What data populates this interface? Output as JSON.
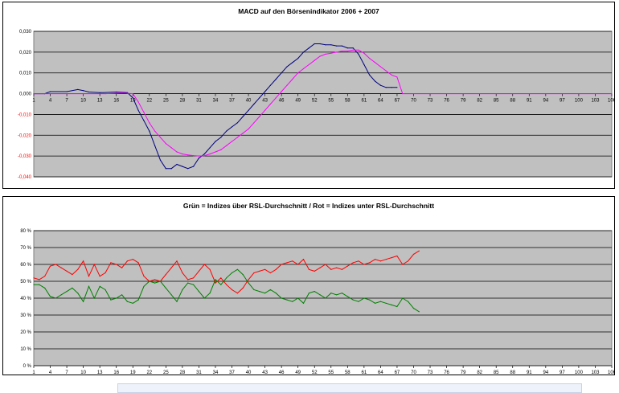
{
  "chart_data": [
    {
      "type": "line",
      "title": "MACD auf den Börsenindikator 2006 + 2007",
      "x_tick_labels": [
        "1",
        "4",
        "7",
        "10",
        "13",
        "16",
        "19",
        "22",
        "25",
        "28",
        "31",
        "34",
        "37",
        "40",
        "43",
        "46",
        "49",
        "52",
        "55",
        "58",
        "61",
        "64",
        "67",
        "70",
        "73",
        "76",
        "79",
        "82",
        "85",
        "88",
        "91",
        "94",
        "97",
        "100",
        "103",
        "106"
      ],
      "y_tick_labels": [
        "0,030",
        "0,020",
        "0,010",
        "0,000",
        "-0,010",
        "-0,020",
        "-0,030",
        "-0,040"
      ],
      "y_tick_values": [
        0.03,
        0.02,
        0.01,
        0.0,
        -0.01,
        -0.02,
        -0.03,
        -0.04
      ],
      "ylim": [
        -0.04,
        0.03
      ],
      "xlim": [
        1,
        106
      ],
      "plot_background": "#c0c0c0",
      "series": [
        {
          "color": "#000080",
          "points": [
            [
              1,
              0
            ],
            [
              3,
              0
            ],
            [
              4,
              0.001
            ],
            [
              7,
              0.001
            ],
            [
              9,
              0.002
            ],
            [
              10,
              0.0015
            ],
            [
              11,
              0.0008
            ],
            [
              13,
              0.0005
            ],
            [
              16,
              0.0008
            ],
            [
              18,
              0.0005
            ],
            [
              19,
              -0.002
            ],
            [
              20,
              -0.008
            ],
            [
              21,
              -0.013
            ],
            [
              22,
              -0.018
            ],
            [
              23,
              -0.025
            ],
            [
              24,
              -0.032
            ],
            [
              25,
              -0.036
            ],
            [
              26,
              -0.036
            ],
            [
              27,
              -0.034
            ],
            [
              28,
              -0.035
            ],
            [
              29,
              -0.036
            ],
            [
              30,
              -0.035
            ],
            [
              31,
              -0.031
            ],
            [
              32,
              -0.029
            ],
            [
              33,
              -0.026
            ],
            [
              34,
              -0.023
            ],
            [
              35,
              -0.021
            ],
            [
              36,
              -0.018
            ],
            [
              37,
              -0.016
            ],
            [
              38,
              -0.014
            ],
            [
              39,
              -0.011
            ],
            [
              40,
              -0.008
            ],
            [
              41,
              -0.005
            ],
            [
              42,
              -0.002
            ],
            [
              43,
              0.001
            ],
            [
              44,
              0.004
            ],
            [
              45,
              0.007
            ],
            [
              46,
              0.01
            ],
            [
              47,
              0.013
            ],
            [
              48,
              0.015
            ],
            [
              49,
              0.017
            ],
            [
              50,
              0.02
            ],
            [
              51,
              0.022
            ],
            [
              52,
              0.024
            ],
            [
              53,
              0.024
            ],
            [
              54,
              0.0235
            ],
            [
              55,
              0.0235
            ],
            [
              56,
              0.023
            ],
            [
              57,
              0.023
            ],
            [
              58,
              0.022
            ],
            [
              59,
              0.022
            ],
            [
              60,
              0.019
            ],
            [
              61,
              0.014
            ],
            [
              62,
              0.009
            ],
            [
              63,
              0.006
            ],
            [
              64,
              0.004
            ],
            [
              65,
              0.003
            ],
            [
              66,
              0.003
            ],
            [
              67,
              0.003
            ]
          ]
        },
        {
          "color": "#ff00ff",
          "points": [
            [
              1,
              0
            ],
            [
              10,
              0
            ],
            [
              14,
              0
            ],
            [
              17,
              0.0003
            ],
            [
              18,
              0.0002
            ],
            [
              19,
              0
            ],
            [
              20,
              -0.004
            ],
            [
              21,
              -0.009
            ],
            [
              22,
              -0.014
            ],
            [
              23,
              -0.018
            ],
            [
              24,
              -0.021
            ],
            [
              25,
              -0.024
            ],
            [
              26,
              -0.026
            ],
            [
              27,
              -0.028
            ],
            [
              28,
              -0.029
            ],
            [
              29,
              -0.0295
            ],
            [
              30,
              -0.0298
            ],
            [
              31,
              -0.03
            ],
            [
              32,
              -0.0298
            ],
            [
              33,
              -0.029
            ],
            [
              34,
              -0.028
            ],
            [
              35,
              -0.027
            ],
            [
              36,
              -0.025
            ],
            [
              37,
              -0.023
            ],
            [
              38,
              -0.021
            ],
            [
              39,
              -0.019
            ],
            [
              40,
              -0.017
            ],
            [
              41,
              -0.014
            ],
            [
              42,
              -0.011
            ],
            [
              43,
              -0.008
            ],
            [
              44,
              -0.005
            ],
            [
              45,
              -0.002
            ],
            [
              46,
              0.001
            ],
            [
              47,
              0.004
            ],
            [
              48,
              0.007
            ],
            [
              49,
              0.01
            ],
            [
              50,
              0.012
            ],
            [
              51,
              0.014
            ],
            [
              52,
              0.016
            ],
            [
              53,
              0.018
            ],
            [
              54,
              0.019
            ],
            [
              55,
              0.0195
            ],
            [
              56,
              0.02
            ],
            [
              57,
              0.0205
            ],
            [
              58,
              0.0205
            ],
            [
              59,
              0.021
            ],
            [
              60,
              0.021
            ],
            [
              61,
              0.0195
            ],
            [
              62,
              0.017
            ],
            [
              63,
              0.015
            ],
            [
              64,
              0.013
            ],
            [
              65,
              0.011
            ],
            [
              66,
              0.009
            ],
            [
              67,
              0.008
            ],
            [
              68,
              0
            ],
            [
              106,
              0
            ]
          ]
        }
      ]
    },
    {
      "type": "line",
      "title": "Grün = Indizes über RSL-Durchschnitt / Rot = Indizes unter RSL-Durchschnitt",
      "x_tick_labels": [
        "1",
        "4",
        "7",
        "10",
        "13",
        "16",
        "19",
        "22",
        "25",
        "28",
        "31",
        "34",
        "37",
        "40",
        "43",
        "46",
        "49",
        "52",
        "55",
        "58",
        "61",
        "64",
        "67",
        "70",
        "73",
        "76",
        "79",
        "82",
        "85",
        "88",
        "91",
        "94",
        "97",
        "100",
        "103",
        "106"
      ],
      "y_tick_labels": [
        "80 %",
        "70 %",
        "60 %",
        "50 %",
        "40 %",
        "30 %",
        "20 %",
        "10 %",
        "0 %"
      ],
      "y_tick_values": [
        80,
        70,
        60,
        50,
        40,
        30,
        20,
        10,
        0
      ],
      "ylim": [
        0,
        80
      ],
      "xlim": [
        1,
        106
      ],
      "plot_background": "#c0c0c0",
      "series": [
        {
          "color": "#ff0000",
          "points": [
            [
              1,
              52
            ],
            [
              2,
              51
            ],
            [
              3,
              53
            ],
            [
              4,
              59
            ],
            [
              5,
              60
            ],
            [
              6,
              58
            ],
            [
              7,
              56
            ],
            [
              8,
              54
            ],
            [
              9,
              57
            ],
            [
              10,
              62
            ],
            [
              11,
              53
            ],
            [
              12,
              60
            ],
            [
              13,
              53
            ],
            [
              14,
              55
            ],
            [
              15,
              61
            ],
            [
              16,
              60
            ],
            [
              17,
              58
            ],
            [
              18,
              62
            ],
            [
              19,
              63
            ],
            [
              20,
              61
            ],
            [
              21,
              53
            ],
            [
              22,
              50
            ],
            [
              23,
              51
            ],
            [
              24,
              50
            ],
            [
              25,
              54
            ],
            [
              26,
              58
            ],
            [
              27,
              62
            ],
            [
              28,
              55
            ],
            [
              29,
              51
            ],
            [
              30,
              52
            ],
            [
              31,
              56
            ],
            [
              32,
              60
            ],
            [
              33,
              57
            ],
            [
              34,
              49
            ],
            [
              35,
              52
            ],
            [
              36,
              48
            ],
            [
              37,
              45
            ],
            [
              38,
              43
            ],
            [
              39,
              46
            ],
            [
              40,
              51
            ],
            [
              41,
              55
            ],
            [
              42,
              56
            ],
            [
              43,
              57
            ],
            [
              44,
              55
            ],
            [
              45,
              57
            ],
            [
              46,
              60
            ],
            [
              47,
              61
            ],
            [
              48,
              62
            ],
            [
              49,
              60
            ],
            [
              50,
              63
            ],
            [
              51,
              57
            ],
            [
              52,
              56
            ],
            [
              53,
              58
            ],
            [
              54,
              60
            ],
            [
              55,
              57
            ],
            [
              56,
              58
            ],
            [
              57,
              57
            ],
            [
              58,
              59
            ],
            [
              59,
              61
            ],
            [
              60,
              62
            ],
            [
              61,
              60
            ],
            [
              62,
              61
            ],
            [
              63,
              63
            ],
            [
              64,
              62
            ],
            [
              65,
              63
            ],
            [
              66,
              64
            ],
            [
              67,
              65
            ],
            [
              68,
              60
            ],
            [
              69,
              62
            ],
            [
              70,
              66
            ],
            [
              71,
              68
            ]
          ]
        },
        {
          "color": "#008000",
          "points": [
            [
              1,
              48
            ],
            [
              2,
              48
            ],
            [
              3,
              46
            ],
            [
              4,
              41
            ],
            [
              5,
              40
            ],
            [
              6,
              42
            ],
            [
              7,
              44
            ],
            [
              8,
              46
            ],
            [
              9,
              43
            ],
            [
              10,
              38
            ],
            [
              11,
              47
            ],
            [
              12,
              40
            ],
            [
              13,
              47
            ],
            [
              14,
              45
            ],
            [
              15,
              39
            ],
            [
              16,
              40
            ],
            [
              17,
              42
            ],
            [
              18,
              38
            ],
            [
              19,
              37
            ],
            [
              20,
              39
            ],
            [
              21,
              47
            ],
            [
              22,
              50
            ],
            [
              23,
              49
            ],
            [
              24,
              50
            ],
            [
              25,
              46
            ],
            [
              26,
              42
            ],
            [
              27,
              38
            ],
            [
              28,
              45
            ],
            [
              29,
              49
            ],
            [
              30,
              48
            ],
            [
              31,
              44
            ],
            [
              32,
              40
            ],
            [
              33,
              43
            ],
            [
              34,
              51
            ],
            [
              35,
              48
            ],
            [
              36,
              52
            ],
            [
              37,
              55
            ],
            [
              38,
              57
            ],
            [
              39,
              54
            ],
            [
              40,
              49
            ],
            [
              41,
              45
            ],
            [
              42,
              44
            ],
            [
              43,
              43
            ],
            [
              44,
              45
            ],
            [
              45,
              43
            ],
            [
              46,
              40
            ],
            [
              47,
              39
            ],
            [
              48,
              38
            ],
            [
              49,
              40
            ],
            [
              50,
              37
            ],
            [
              51,
              43
            ],
            [
              52,
              44
            ],
            [
              53,
              42
            ],
            [
              54,
              40
            ],
            [
              55,
              43
            ],
            [
              56,
              42
            ],
            [
              57,
              43
            ],
            [
              58,
              41
            ],
            [
              59,
              39
            ],
            [
              60,
              38
            ],
            [
              61,
              40
            ],
            [
              62,
              39
            ],
            [
              63,
              37
            ],
            [
              64,
              38
            ],
            [
              65,
              37
            ],
            [
              66,
              36
            ],
            [
              67,
              35
            ],
            [
              68,
              40
            ],
            [
              69,
              38
            ],
            [
              70,
              34
            ],
            [
              71,
              32
            ]
          ]
        }
      ]
    }
  ]
}
